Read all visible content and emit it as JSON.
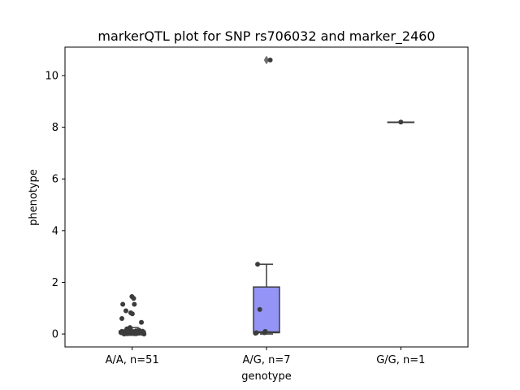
{
  "chart_data": {
    "type": "box",
    "title": "markerQTL plot for SNP rs706032 and marker_2460",
    "xlabel": "genotype",
    "ylabel": "phenotype",
    "categories": [
      "A/A, n=51",
      "A/G, n=7",
      "G/G, n=1"
    ],
    "ylim": [
      -0.5,
      11.1
    ],
    "yticks": [
      0,
      2,
      4,
      6,
      8,
      10
    ],
    "ytick_labels": [
      "0",
      "2",
      "4",
      "6",
      "8",
      "10"
    ],
    "grid": false,
    "colors": {
      "box_fill": "#9494f7",
      "box_stroke": "#3c3c3c",
      "point": "#3c3c3c",
      "axes": "#000000"
    },
    "boxes": [
      {
        "category": "A/A, n=51",
        "q1": 0.03,
        "median": 0.07,
        "q3": 0.12,
        "whisker_low": 0.0,
        "whisker_high": 0.25,
        "fliers": []
      },
      {
        "category": "A/G, n=7",
        "q1": 0.05,
        "median": 0.08,
        "q3": 1.82,
        "whisker_low": 0.0,
        "whisker_high": 2.7,
        "fliers": [
          10.6
        ]
      },
      {
        "category": "G/G, n=1",
        "q1": 8.2,
        "median": 8.2,
        "q3": 8.2,
        "whisker_low": 8.2,
        "whisker_high": 8.2,
        "fliers": []
      }
    ],
    "points": [
      {
        "category": "A/A, n=51",
        "values": [
          1.45,
          1.38,
          1.15,
          0.9,
          0.82,
          0.78,
          0.6,
          0.45,
          1.15,
          0.25,
          0.2,
          0.15,
          0.12,
          0.1,
          0.1,
          0.08,
          0.08,
          0.07,
          0.07,
          0.06,
          0.06,
          0.05,
          0.05,
          0.05,
          0.04,
          0.04,
          0.03,
          0.03,
          0.02,
          0.02,
          0.01,
          0.01,
          0.0,
          0.0,
          0.1,
          0.12,
          0.09,
          0.06,
          0.04,
          0.03,
          0.02,
          0.08,
          0.05,
          0.11,
          0.07,
          0.03,
          0.02,
          0.06,
          0.01,
          0.04,
          0.09
        ]
      },
      {
        "category": "A/G, n=7",
        "values": [
          10.6,
          2.7,
          0.95,
          0.1,
          0.05,
          0.03,
          0.05
        ]
      },
      {
        "category": "G/G, n=1",
        "values": [
          8.2
        ]
      }
    ]
  }
}
